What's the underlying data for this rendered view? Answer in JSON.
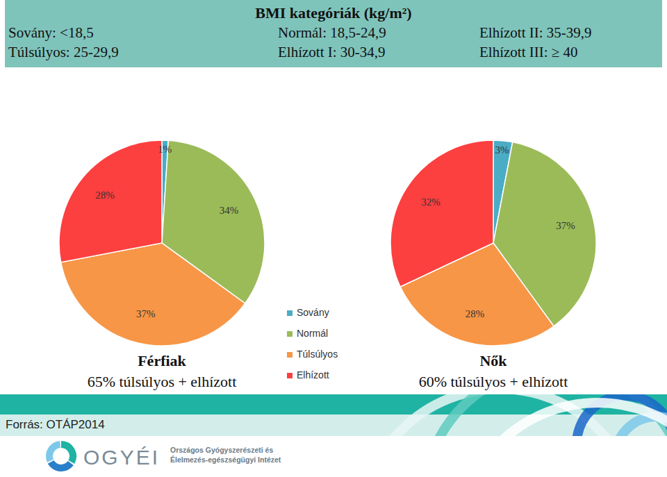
{
  "header": {
    "title": "BMI kategóriák (kg/m²)",
    "items": [
      [
        "Sovány: <18,5",
        "Normál: 18,5-24,9",
        "Elhízott II: 35-39,9"
      ],
      [
        "Túlsúlyos: 25-29,9",
        "Elhízott I: 30-34,9",
        "Elhízott III: ≥ 40"
      ]
    ]
  },
  "chart_data": [
    {
      "type": "pie",
      "title": "Férfiak",
      "subtitle": "65% túlsúlyos + elhízott",
      "categories": [
        "Sovány",
        "Normál",
        "Túlsúlyos",
        "Elhízott"
      ],
      "values": [
        1,
        34,
        37,
        28
      ],
      "value_labels": [
        "1%",
        "34%",
        "37%",
        "28%"
      ],
      "colors": [
        "#4bacc6",
        "#9bbb59",
        "#f79646",
        "#fc3f3f"
      ],
      "data_labels": true,
      "legend": "right"
    },
    {
      "type": "pie",
      "title": "Nők",
      "subtitle": "60% túlsúlyos + elhízott",
      "categories": [
        "Sovány",
        "Normál",
        "Túlsúlyos",
        "Elhízott"
      ],
      "values": [
        3,
        37,
        28,
        32
      ],
      "value_labels": [
        "3%",
        "37%",
        "28%",
        "32%"
      ],
      "colors": [
        "#4bacc6",
        "#9bbb59",
        "#f79646",
        "#fc3f3f"
      ],
      "data_labels": true
    }
  ],
  "source": "Forrás: OTÁP2014",
  "logo": {
    "name": "OGYÉI",
    "lines": [
      "Országos Gyógyszerészeti és",
      "Élelmezés-egészségügyi Intézet"
    ]
  }
}
